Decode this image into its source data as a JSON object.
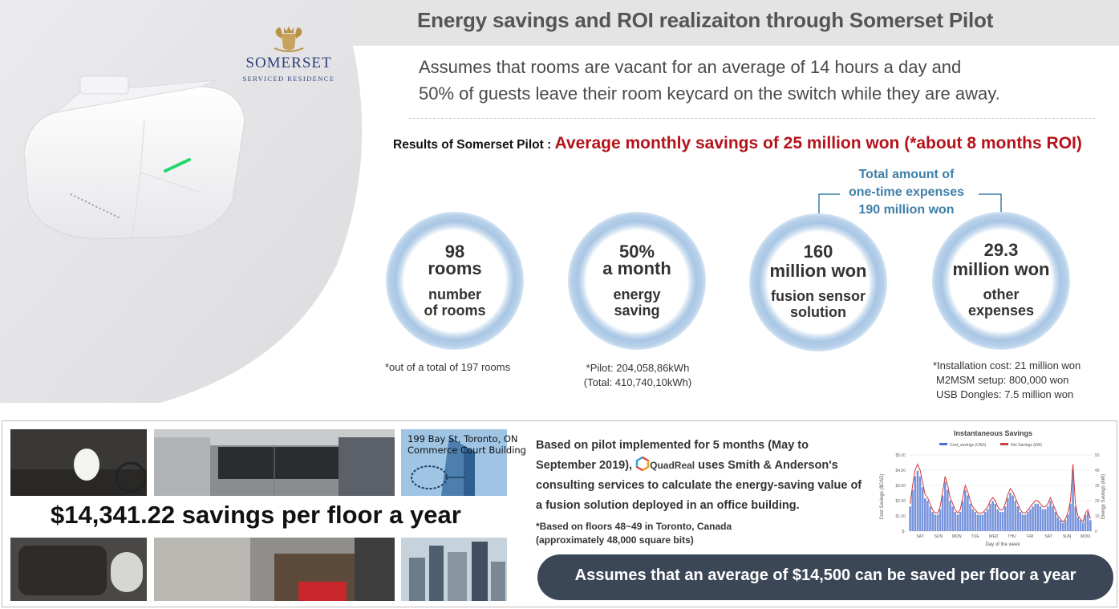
{
  "header": {
    "title": "Energy savings and ROI realizaiton through Somerset Pilot"
  },
  "brand": {
    "name": "SOMERSET",
    "subtitle": "SERVICED RESIDENCE"
  },
  "assumptions": {
    "line1": "Assumes that rooms are vacant for an average of 14 hours a day and",
    "line2": "50% of guests leave their room keycard on the switch while they are away."
  },
  "results": {
    "label": "Results of Somerset Pilot : ",
    "value": "Average monthly savings of 25 million won (*about 8 months ROI)"
  },
  "onetime": {
    "line1": "Total amount of",
    "line2": "one-time expenses",
    "line3": "190 million won"
  },
  "metrics": [
    {
      "big1": "98",
      "big2": "rooms",
      "small1": "number",
      "small2": "of rooms"
    },
    {
      "big1": "50%",
      "big2": "a month",
      "small1": "energy",
      "small2": "saving"
    },
    {
      "big1": "160",
      "big2": "million won",
      "small1": "fusion sensor",
      "small2": "solution"
    },
    {
      "big1": "29.3",
      "big2": "million won",
      "small1": "other",
      "small2": "expenses"
    }
  ],
  "notes": {
    "rooms": "*out of a total of 197 rooms",
    "energy_line1": "*Pilot: 204,058,86kWh",
    "energy_line2": "(Total: 410,740,10kWh)",
    "costs_line1": "*Installation cost: 21 million won",
    "costs_line2": "M2MSM setup: 800,000 won",
    "costs_line3": "USB Dongles: 7.5 million won"
  },
  "office": {
    "savings": "$14,341.22 savings per floor a year",
    "address_line1": "199 Bay St, Toronto, ON",
    "address_line2": "Commerce Court Building",
    "pilot_part1": "Based on pilot implemented for 5 months (May to September 2019), ",
    "quadreal": "QuadReal",
    "pilot_part2": " uses Smith & Anderson's consulting services to calculate the energy-saving value of a fusion solution deployed in an office building.",
    "note_line1": "*Based on floors 48~49 in Toronto, Canada",
    "note_line2": "(approximately 48,000 square bits)",
    "conclusion": "Assumes that an average of $14,500 can be saved per floor a year"
  },
  "chart_data": {
    "type": "bar",
    "title": "Instantaneous Savings",
    "series": [
      {
        "name": "Cost_savings (CAD)",
        "color": "#4a6fd0"
      },
      {
        "name": "Net Savings (kW)",
        "color": "#d03a3a"
      }
    ],
    "y_left_label": "Cost Savings ($CAD)",
    "y_left_ticks": [
      "$5.00",
      "$4.00",
      "$3.00",
      "$2.00",
      "$1.00",
      "$-"
    ],
    "y_right_label": "Energy Savings (kW)",
    "y_right_ticks": [
      "50",
      "40",
      "30",
      "20",
      "10",
      "0"
    ],
    "x_ticks": [
      "SAT",
      "SUN",
      "MON",
      "TUE",
      "WED",
      "THU",
      "FRI",
      "SAT",
      "SUN",
      "MON"
    ],
    "xlabel": "Day of the week",
    "ylim_left": [
      0,
      5
    ],
    "ylim_right": [
      0,
      50
    ],
    "values_kw": [
      18,
      30,
      40,
      44,
      40,
      32,
      24,
      22,
      18,
      14,
      12,
      12,
      16,
      26,
      36,
      30,
      22,
      18,
      14,
      12,
      14,
      22,
      30,
      26,
      20,
      16,
      14,
      12,
      12,
      12,
      14,
      16,
      20,
      22,
      20,
      16,
      14,
      14,
      18,
      24,
      28,
      26,
      22,
      18,
      14,
      12,
      12,
      14,
      16,
      18,
      20,
      20,
      18,
      16,
      16,
      18,
      22,
      18,
      14,
      10,
      8,
      6,
      8,
      12,
      20,
      44,
      18,
      10,
      8,
      6,
      12,
      14,
      8
    ]
  }
}
